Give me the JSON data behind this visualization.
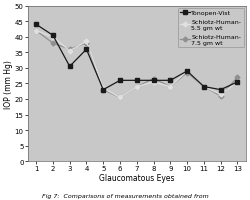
{
  "x": [
    1,
    2,
    3,
    4,
    5,
    6,
    7,
    8,
    9,
    10,
    11,
    12,
    13
  ],
  "tonopen": [
    44,
    40.5,
    30.5,
    36,
    23,
    26,
    26,
    26,
    26,
    29,
    24,
    23,
    25.5
  ],
  "schiotz_5_5": [
    42,
    40,
    35.5,
    38.5,
    23.5,
    20.5,
    24,
    25.5,
    24,
    29,
    24,
    21.5,
    25.5
  ],
  "schiotz_7_5": [
    42,
    38,
    36,
    38,
    23,
    20.5,
    24,
    26.5,
    24,
    28.5,
    24,
    21,
    27
  ],
  "legend_labels": [
    "Tonopen-Vist",
    "Schiotz-Human-\n5.5 gm wt",
    "Schiotz-Human-\n7.5 gm wt"
  ],
  "xlabel": "Glaucomatous Eyes",
  "ylabel": "IOP (mm Hg)",
  "ylim": [
    0,
    50
  ],
  "yticks": [
    0,
    5,
    10,
    15,
    20,
    25,
    30,
    35,
    40,
    45,
    50
  ],
  "xticks": [
    1,
    2,
    3,
    4,
    5,
    6,
    7,
    8,
    9,
    10,
    11,
    12,
    13
  ],
  "plot_bg_color": "#c8c8c8",
  "fig_bg_color": "#ffffff",
  "line_color_1": "#1a1a1a",
  "line_color_2": "#e0e0e0",
  "line_color_3": "#909090",
  "caption": "Fig 7:  Comparisons of measurements obtained from",
  "fontsize_axis_label": 5.5,
  "fontsize_tick": 5,
  "fontsize_legend": 4.5,
  "fontsize_caption": 4.5
}
